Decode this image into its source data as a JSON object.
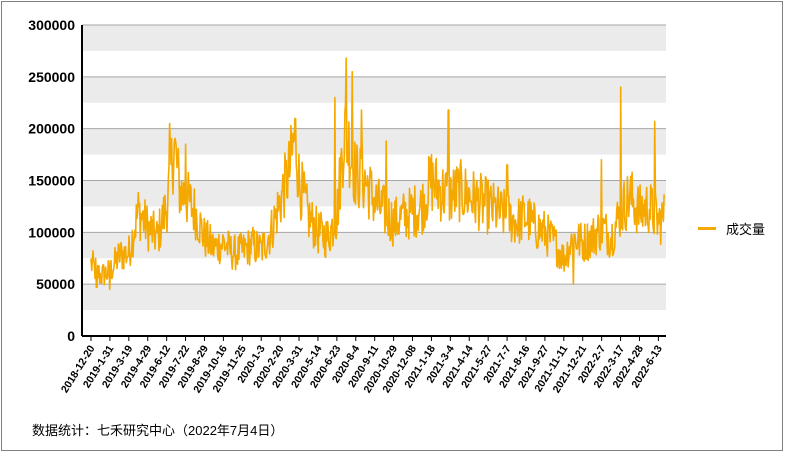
{
  "chart_data": {
    "type": "line",
    "series": [
      {
        "name": "成交量",
        "color": "#F5A800"
      }
    ],
    "ylim": [
      0,
      300000
    ],
    "yticks": [
      "0",
      "50000",
      "100000",
      "150000",
      "200000",
      "250000",
      "300000"
    ],
    "xtick_labels": [
      "2018-12-20",
      "2019-1-31",
      "2019-3-19",
      "2019-4-29",
      "2019-6-12",
      "2019-7-22",
      "2019-8-29",
      "2019-10-16",
      "2019-11-25",
      "2020-1-3",
      "2020-2-20",
      "2020-3-31",
      "2020-5-14",
      "2020-6-23",
      "2020-8-4",
      "2020-9-11",
      "2020-10-29",
      "2020-12-08",
      "2021-1-18",
      "2021-3-4",
      "2021-4-14",
      "2021-5-27",
      "2021-7-7",
      "2021-8-16",
      "2021-9-27",
      "2021-11-11",
      "2021-12-21",
      "2022-2-7",
      "2022-3-17",
      "2022-4-28",
      "2022-6-13"
    ],
    "anchors": [
      [
        0,
        70000
      ],
      [
        0.5,
        58000
      ],
      [
        1,
        62000
      ],
      [
        1.5,
        78000
      ],
      [
        2,
        80000
      ],
      [
        2.5,
        120000
      ],
      [
        3,
        105000
      ],
      [
        3.5,
        95000
      ],
      [
        4,
        125000
      ],
      [
        4.4,
        185000
      ],
      [
        4.7,
        140000
      ],
      [
        5,
        135000
      ],
      [
        5.5,
        120000
      ],
      [
        6,
        95000
      ],
      [
        6.5,
        85000
      ],
      [
        7,
        90000
      ],
      [
        7.5,
        80000
      ],
      [
        8,
        82000
      ],
      [
        8.5,
        88000
      ],
      [
        9,
        83000
      ],
      [
        9.5,
        100000
      ],
      [
        10,
        130000
      ],
      [
        10.5,
        160000
      ],
      [
        10.8,
        195000
      ],
      [
        11,
        150000
      ],
      [
        11.5,
        115000
      ],
      [
        12,
        100000
      ],
      [
        12.5,
        95000
      ],
      [
        13,
        115000
      ],
      [
        13.4,
        200000
      ],
      [
        13.7,
        180000
      ],
      [
        14,
        155000
      ],
      [
        14.5,
        150000
      ],
      [
        15,
        130000
      ],
      [
        15.5,
        120000
      ],
      [
        16,
        110000
      ],
      [
        16.5,
        115000
      ],
      [
        17,
        120000
      ],
      [
        17.5,
        125000
      ],
      [
        18,
        150000
      ],
      [
        18.5,
        140000
      ],
      [
        19,
        135000
      ],
      [
        19.5,
        140000
      ],
      [
        20,
        135000
      ],
      [
        20.5,
        130000
      ],
      [
        21,
        125000
      ],
      [
        21.5,
        120000
      ],
      [
        22,
        115000
      ],
      [
        22.5,
        110000
      ],
      [
        23,
        115000
      ],
      [
        23.5,
        105000
      ],
      [
        24,
        100000
      ],
      [
        24.5,
        90000
      ],
      [
        25,
        75000
      ],
      [
        25.5,
        95000
      ],
      [
        26,
        90000
      ],
      [
        26.5,
        95000
      ],
      [
        27,
        105000
      ],
      [
        27.5,
        95000
      ],
      [
        28,
        120000
      ],
      [
        28.5,
        135000
      ],
      [
        29,
        120000
      ],
      [
        29.5,
        125000
      ],
      [
        30,
        110000
      ],
      [
        30.3,
        115000
      ]
    ],
    "spikes": [
      [
        0.3,
        47000
      ],
      [
        1.0,
        45000
      ],
      [
        4.15,
        205000
      ],
      [
        5.0,
        185000
      ],
      [
        12.9,
        230000
      ],
      [
        13.5,
        268000
      ],
      [
        13.8,
        255000
      ],
      [
        14.3,
        218000
      ],
      [
        15.6,
        188000
      ],
      [
        18.0,
        175000
      ],
      [
        18.9,
        218000
      ],
      [
        25.5,
        50000
      ],
      [
        27.0,
        170000
      ],
      [
        28.0,
        240000
      ],
      [
        29.8,
        207000
      ],
      [
        22.0,
        165000
      ]
    ],
    "source": "数据统计：七禾研究中心（2022年7月4日）"
  }
}
